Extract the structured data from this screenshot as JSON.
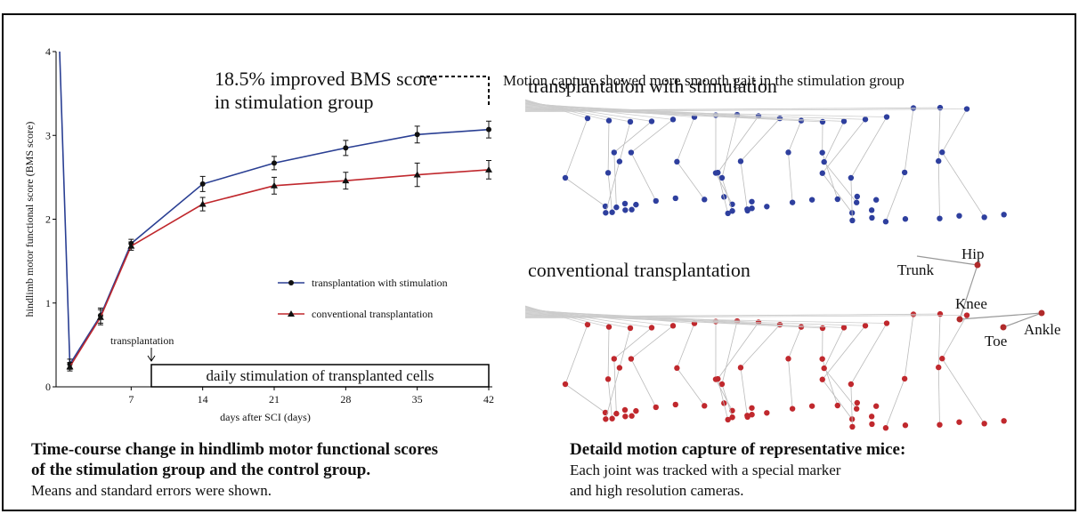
{
  "chart_data": {
    "type": "line",
    "y_label": "hindlimb motor functional score (BMS score)",
    "x_label": "days after SCI (days)",
    "x": [
      0,
      1,
      4,
      7,
      14,
      21,
      28,
      35,
      42
    ],
    "series": [
      {
        "name": "transplantation with stimulation",
        "color": "#2a3f93",
        "marker": "circle",
        "values": [
          4,
          0.27,
          0.85,
          1.71,
          2.42,
          2.67,
          2.85,
          3.01,
          3.07
        ],
        "errors": [
          0,
          0.06,
          0.09,
          0.05,
          0.09,
          0.08,
          0.09,
          0.1,
          0.1
        ]
      },
      {
        "name": "conventional transplantation",
        "color": "#c0282d",
        "marker": "triangle",
        "values": [
          null,
          0.24,
          0.83,
          1.68,
          2.18,
          2.4,
          2.46,
          2.53,
          2.59
        ],
        "errors": [
          null,
          0.05,
          0.09,
          0.05,
          0.08,
          0.1,
          0.1,
          0.14,
          0.11
        ]
      }
    ],
    "xlim": [
      0,
      42
    ],
    "xticks": [
      7,
      14,
      21,
      28,
      35,
      42
    ],
    "ylim": [
      0,
      4
    ],
    "yticks": [
      0,
      1,
      2,
      3,
      4
    ],
    "legend": "lower right",
    "annotations": {
      "improvement": [
        "18.5% improved BMS score",
        "in stimulation group"
      ],
      "transplant": "transplantation",
      "stimulation": "daily stimulation of transplanted cells"
    }
  },
  "left_caption": {
    "title": [
      "Time-course change in hindlimb motor functional scores",
      "of the stimulation group and the control group."
    ],
    "note": "Means and standard errors were shown."
  },
  "motion_capture": {
    "header": "Motion capture showed more smooth gait in the stimulation group",
    "panels": [
      "transplantation with stimulation",
      "conventional transplantation"
    ],
    "joints": [
      "Hip",
      "Trunk",
      "Knee",
      "Toe",
      "Ankle"
    ],
    "caption": {
      "title": "Detaild motion capture of representative mice:",
      "lines": [
        "Each joint was tracked with a special marker",
        "and high resolution cameras."
      ]
    }
  }
}
